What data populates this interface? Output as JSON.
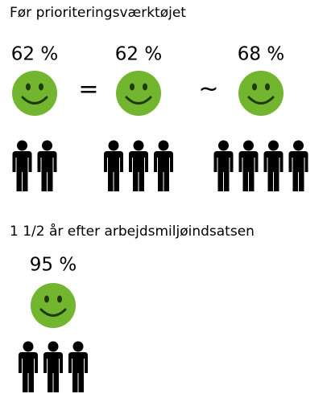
{
  "sections": [
    {
      "title": "Før prioriteringsværktøjet",
      "groups": [
        {
          "percent": "62 %",
          "people": 2
        },
        {
          "percent": "62 %",
          "people": 3
        },
        {
          "percent": "68 %",
          "people": 4
        }
      ],
      "operators": [
        "=",
        "~"
      ]
    },
    {
      "title": "1 1/2 år efter arbejdsmiljøindsatsen",
      "groups": [
        {
          "percent": "95 %",
          "people": 3
        }
      ],
      "operators": []
    }
  ]
}
